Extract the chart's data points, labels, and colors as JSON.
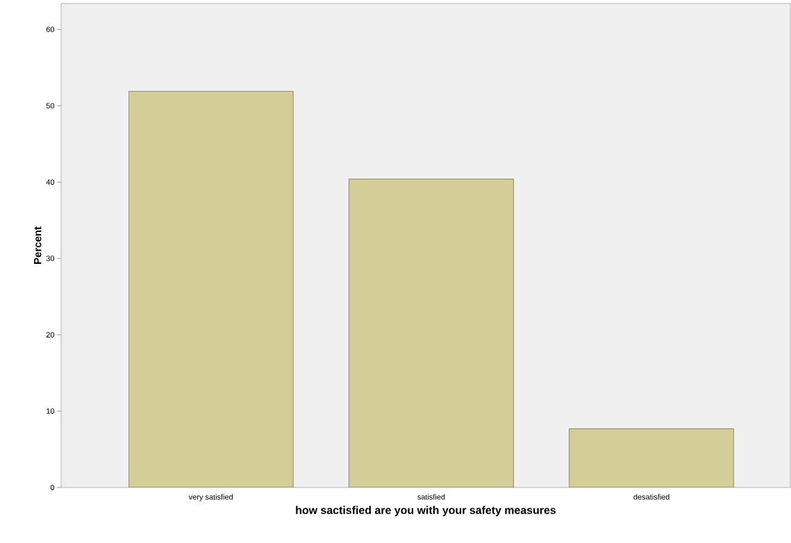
{
  "chart_data": {
    "type": "bar",
    "xlabel": "how sactisfied are you with your safety measures",
    "ylabel": "Percent",
    "categories": [
      "very satisfied",
      "satisfied",
      "desatisfied"
    ],
    "values": [
      51.9,
      40.4,
      7.7
    ],
    "color": "#d3ce98",
    "ylim": [
      0,
      63.4
    ],
    "yticks": [
      0,
      10,
      20,
      30,
      40,
      50,
      60
    ],
    "grid": false
  }
}
